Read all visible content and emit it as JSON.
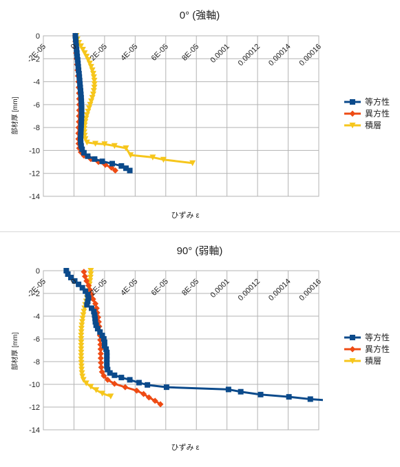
{
  "chart_data": [
    {
      "type": "line",
      "title": "0° (強軸)",
      "xlabel": "ひずみ ε",
      "ylabel": "部材厚 [mm]",
      "xlim": [
        -2e-05,
        0.00016
      ],
      "ylim": [
        -14,
        0
      ],
      "xticks": [
        "-2E-05",
        "0",
        "2E-05",
        "4E-05",
        "6E-05",
        "8E-05",
        "0.0001",
        "0.00012",
        "0.00014",
        "0.00016"
      ],
      "yticks": [
        "0",
        "-2",
        "-4",
        "-6",
        "-8",
        "-10",
        "-12",
        "-14"
      ],
      "grid": true,
      "legend_position": "right",
      "series": [
        {
          "name": "等方性",
          "color": "#0b4a8b",
          "marker": "square",
          "points": [
            [
              9e-07,
              0
            ],
            [
              1.1e-06,
              -0.3
            ],
            [
              1.3e-06,
              -0.6
            ],
            [
              1.5e-06,
              -0.9
            ],
            [
              1.7e-06,
              -1.2
            ],
            [
              1.9e-06,
              -1.5
            ],
            [
              2.1e-06,
              -1.8
            ],
            [
              2.4e-06,
              -2.1
            ],
            [
              2.6e-06,
              -2.4
            ],
            [
              2.8e-06,
              -2.7
            ],
            [
              3e-06,
              -3.0
            ],
            [
              3.3e-06,
              -3.3
            ],
            [
              3.5e-06,
              -3.6
            ],
            [
              3.7e-06,
              -3.9
            ],
            [
              3.9e-06,
              -4.2
            ],
            [
              4.1e-06,
              -4.5
            ],
            [
              4.3e-06,
              -4.8
            ],
            [
              4.5e-06,
              -5.1
            ],
            [
              4.7e-06,
              -5.4
            ],
            [
              4.8e-06,
              -5.7
            ],
            [
              4.9e-06,
              -6.0
            ],
            [
              5e-06,
              -6.3
            ],
            [
              5e-06,
              -6.6
            ],
            [
              5e-06,
              -6.9
            ],
            [
              4.9e-06,
              -7.2
            ],
            [
              4.8e-06,
              -7.5
            ],
            [
              4.7e-06,
              -7.8
            ],
            [
              4.6e-06,
              -8.1
            ],
            [
              4.5e-06,
              -8.4
            ],
            [
              4.4e-06,
              -8.7
            ],
            [
              4.3e-06,
              -9.0
            ],
            [
              4.4e-06,
              -9.3
            ],
            [
              4.7e-06,
              -9.6
            ],
            [
              5.3e-06,
              -9.9
            ],
            [
              6.5e-06,
              -10.2
            ],
            [
              9e-06,
              -10.5
            ],
            [
              1.35e-05,
              -10.75
            ],
            [
              1.85e-05,
              -10.95
            ],
            [
              2.5e-05,
              -11.15
            ],
            [
              3.1e-05,
              -11.35
            ],
            [
              3.4e-05,
              -11.55
            ],
            [
              3.65e-05,
              -11.75
            ]
          ]
        },
        {
          "name": "異方性",
          "color": "#ee4b14",
          "marker": "diamond",
          "points": [
            [
              8e-07,
              0
            ],
            [
              1e-06,
              -0.5
            ],
            [
              1.2e-06,
              -1.0
            ],
            [
              1.4e-06,
              -1.5
            ],
            [
              1.7e-06,
              -2.0
            ],
            [
              2e-06,
              -2.5
            ],
            [
              2.3e-06,
              -3.0
            ],
            [
              2.6e-06,
              -3.5
            ],
            [
              2.9e-06,
              -4.0
            ],
            [
              3.1e-06,
              -4.5
            ],
            [
              3.3e-06,
              -5.0
            ],
            [
              3.4e-06,
              -5.5
            ],
            [
              3.5e-06,
              -6.0
            ],
            [
              3.4e-06,
              -6.5
            ],
            [
              3.3e-06,
              -7.0
            ],
            [
              3.2e-06,
              -7.5
            ],
            [
              3e-06,
              -8.0
            ],
            [
              2.9e-06,
              -8.5
            ],
            [
              2.9e-06,
              -9.0
            ],
            [
              3e-06,
              -9.4
            ],
            [
              3.4e-06,
              -9.8
            ],
            [
              4.5e-06,
              -10.15
            ],
            [
              6.5e-06,
              -10.45
            ],
            [
              1.1e-05,
              -10.75
            ],
            [
              1.6e-05,
              -11.0
            ],
            [
              2.05e-05,
              -11.25
            ],
            [
              2.45e-05,
              -11.5
            ],
            [
              2.7e-05,
              -11.75
            ]
          ]
        },
        {
          "name": "積層",
          "color": "#f6c61c",
          "marker": "triangle-down",
          "points": [
            [
              1.5e-06,
              0
            ],
            [
              2.2e-06,
              -0.3
            ],
            [
              3.2e-06,
              -0.6
            ],
            [
              4.5e-06,
              -0.9
            ],
            [
              5.8e-06,
              -1.2
            ],
            [
              7e-06,
              -1.5
            ],
            [
              8.2e-06,
              -1.8
            ],
            [
              9.3e-06,
              -2.1
            ],
            [
              1.03e-05,
              -2.4
            ],
            [
              1.12e-05,
              -2.7
            ],
            [
              1.2e-05,
              -3.0
            ],
            [
              1.26e-05,
              -3.3
            ],
            [
              1.3e-05,
              -3.6
            ],
            [
              1.33e-05,
              -3.9
            ],
            [
              1.34e-05,
              -4.2
            ],
            [
              1.33e-05,
              -4.5
            ],
            [
              1.3e-05,
              -4.8
            ],
            [
              1.26e-05,
              -5.1
            ],
            [
              1.2e-05,
              -5.4
            ],
            [
              1.13e-05,
              -5.7
            ],
            [
              1.06e-05,
              -6.0
            ],
            [
              9.9e-06,
              -6.3
            ],
            [
              9.2e-06,
              -6.6
            ],
            [
              8.5e-06,
              -6.9
            ],
            [
              7.9e-06,
              -7.2
            ],
            [
              7.4e-06,
              -7.5
            ],
            [
              7e-06,
              -7.8
            ],
            [
              6.8e-06,
              -8.1
            ],
            [
              6.8e-06,
              -8.4
            ],
            [
              7e-06,
              -8.7
            ],
            [
              7.4e-06,
              -9.0
            ],
            [
              8.5e-06,
              -9.3
            ],
            [
              1.4e-05,
              -9.4
            ],
            [
              2e-05,
              -9.45
            ],
            [
              2.65e-05,
              -9.6
            ],
            [
              3.4e-05,
              -9.8
            ],
            [
              3.7e-05,
              -10.4
            ],
            [
              5.15e-05,
              -10.6
            ],
            [
              5.85e-05,
              -10.8
            ],
            [
              7.75e-05,
              -11.1
            ]
          ]
        }
      ]
    },
    {
      "type": "line",
      "title": "90° (弱軸)",
      "xlabel": "ひずみ ε",
      "ylabel": "部材厚 [mm]",
      "xlim": [
        -2e-05,
        0.00016
      ],
      "ylim": [
        -14,
        0
      ],
      "xticks": [
        "-2E-05",
        "0",
        "2E-05",
        "4E-05",
        "6E-05",
        "8E-05",
        "0.0001",
        "0.00012",
        "0.00014",
        "0.00016"
      ],
      "yticks": [
        "0",
        "-2",
        "-4",
        "-6",
        "-8",
        "-10",
        "-12",
        "-14"
      ],
      "grid": true,
      "legend_position": "right",
      "series": [
        {
          "name": "等方性",
          "color": "#0b4a8b",
          "marker": "square",
          "points": [
            [
              -5e-06,
              0
            ],
            [
              -4e-06,
              -0.3
            ],
            [
              -2e-06,
              -0.6
            ],
            [
              5e-07,
              -0.9
            ],
            [
              3e-06,
              -1.2
            ],
            [
              5.5e-06,
              -1.5
            ],
            [
              7.5e-06,
              -1.8
            ],
            [
              9e-06,
              -2.1
            ],
            [
              9.5e-06,
              -2.4
            ],
            [
              9e-06,
              -2.7
            ],
            [
              8.5e-06,
              -3.0
            ],
            [
              1.15e-05,
              -3.3
            ],
            [
              1.3e-05,
              -3.6
            ],
            [
              1.35e-05,
              -3.9
            ],
            [
              1.38e-05,
              -4.2
            ],
            [
              1.4e-05,
              -4.5
            ],
            [
              1.45e-05,
              -4.8
            ],
            [
              1.55e-05,
              -5.1
            ],
            [
              1.7e-05,
              -5.4
            ],
            [
              1.85e-05,
              -5.7
            ],
            [
              1.95e-05,
              -6.0
            ],
            [
              2e-05,
              -6.3
            ],
            [
              2e-05,
              -6.6
            ],
            [
              2.1e-05,
              -6.9
            ],
            [
              2.15e-05,
              -7.2
            ],
            [
              2.15e-05,
              -7.5
            ],
            [
              2.15e-05,
              -7.8
            ],
            [
              2.15e-05,
              -8.1
            ],
            [
              2.15e-05,
              -8.4
            ],
            [
              2.2e-05,
              -8.7
            ],
            [
              2.35e-05,
              -9.0
            ],
            [
              2.65e-05,
              -9.2
            ],
            [
              3.1e-05,
              -9.4
            ],
            [
              3.65e-05,
              -9.6
            ],
            [
              4.25e-05,
              -9.85
            ],
            [
              4.8e-05,
              -10.05
            ],
            [
              6.05e-05,
              -10.25
            ],
            [
              0.000101,
              -10.45
            ],
            [
              0.000109,
              -10.65
            ],
            [
              0.000122,
              -10.9
            ],
            [
              0.0001405,
              -11.1
            ],
            [
              0.0001545,
              -11.3
            ],
            [
              0.000175,
              -11.5
            ]
          ]
        },
        {
          "name": "異方性",
          "color": "#ee4b14",
          "marker": "diamond",
          "points": [
            [
              6.5e-06,
              -0.1
            ],
            [
              7.2e-06,
              -0.5
            ],
            [
              8.2e-06,
              -0.9
            ],
            [
              9.5e-06,
              -1.3
            ],
            [
              1.05e-05,
              -1.7
            ],
            [
              1.15e-05,
              -2.1
            ],
            [
              1.25e-05,
              -2.5
            ],
            [
              1.4e-05,
              -2.9
            ],
            [
              1.48e-05,
              -3.3
            ],
            [
              1.52e-05,
              -3.7
            ],
            [
              1.58e-05,
              -4.1
            ],
            [
              1.62e-05,
              -4.5
            ],
            [
              1.65e-05,
              -4.9
            ],
            [
              1.68e-05,
              -5.3
            ],
            [
              1.7e-05,
              -5.7
            ],
            [
              1.72e-05,
              -6.1
            ],
            [
              1.73e-05,
              -6.5
            ],
            [
              1.74e-05,
              -6.9
            ],
            [
              1.75e-05,
              -7.3
            ],
            [
              1.75e-05,
              -7.7
            ],
            [
              1.76e-05,
              -8.1
            ],
            [
              1.78e-05,
              -8.5
            ],
            [
              1.83e-05,
              -8.9
            ],
            [
              1.95e-05,
              -9.25
            ],
            [
              2.2e-05,
              -9.6
            ],
            [
              2.65e-05,
              -9.95
            ],
            [
              3.35e-05,
              -10.25
            ],
            [
              4.1e-05,
              -10.55
            ],
            [
              4.55e-05,
              -10.85
            ],
            [
              4.9e-05,
              -11.15
            ],
            [
              5.3e-05,
              -11.45
            ],
            [
              5.65e-05,
              -11.75
            ]
          ]
        },
        {
          "name": "積層",
          "color": "#f6c61c",
          "marker": "triangle-down",
          "points": [
            [
              1.1e-05,
              0
            ],
            [
              1.1e-05,
              -0.3
            ],
            [
              1.08e-05,
              -0.6
            ],
            [
              1.05e-05,
              -0.9
            ],
            [
              1.02e-05,
              -1.2
            ],
            [
              9.8e-06,
              -1.5
            ],
            [
              9.4e-06,
              -1.8
            ],
            [
              9e-06,
              -2.1
            ],
            [
              8.5e-06,
              -2.4
            ],
            [
              8e-06,
              -2.7
            ],
            [
              7.4e-06,
              -3.0
            ],
            [
              6.9e-06,
              -3.3
            ],
            [
              6.5e-06,
              -3.6
            ],
            [
              6.1e-06,
              -3.9
            ],
            [
              5.7e-06,
              -4.2
            ],
            [
              5.4e-06,
              -4.5
            ],
            [
              5.1e-06,
              -4.8
            ],
            [
              4.9e-06,
              -5.1
            ],
            [
              4.8e-06,
              -5.4
            ],
            [
              4.7e-06,
              -5.7
            ],
            [
              4.7e-06,
              -6.0
            ],
            [
              4.7e-06,
              -6.3
            ],
            [
              4.7e-06,
              -6.6
            ],
            [
              4.7e-06,
              -6.9
            ],
            [
              4.7e-06,
              -7.2
            ],
            [
              4.7e-06,
              -7.5
            ],
            [
              4.7e-06,
              -7.8
            ],
            [
              4.8e-06,
              -8.1
            ],
            [
              4.9e-06,
              -8.4
            ],
            [
              5e-06,
              -8.7
            ],
            [
              5.2e-06,
              -9.0
            ],
            [
              5.5e-06,
              -9.3
            ],
            [
              6.2e-06,
              -9.6
            ],
            [
              8e-06,
              -9.9
            ],
            [
              1.1e-05,
              -10.2
            ],
            [
              1.45e-05,
              -10.5
            ],
            [
              1.85e-05,
              -10.8
            ],
            [
              2.4e-05,
              -11.05
            ]
          ]
        }
      ]
    }
  ]
}
